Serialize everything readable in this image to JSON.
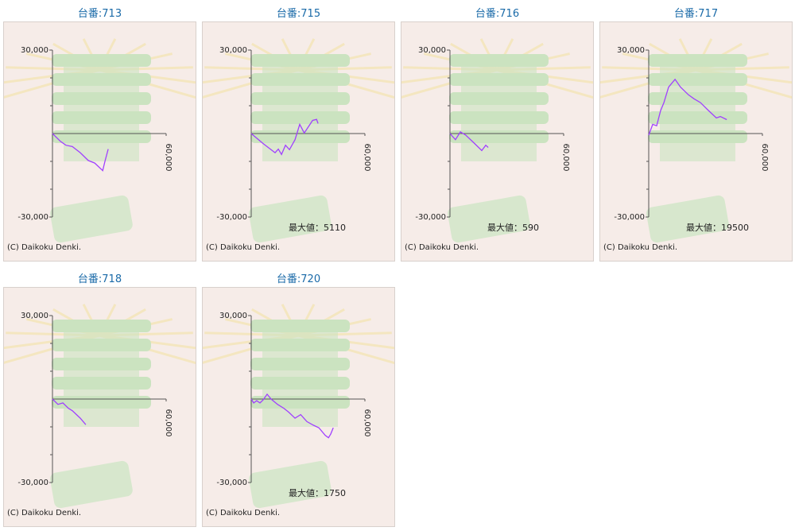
{
  "chart_data": [
    {
      "type": "line",
      "title": "台番:713",
      "copyright": "(C) Daikoku Denki.",
      "x": [
        0,
        4200,
        7100,
        10500,
        14700,
        18900,
        22300,
        26500,
        27700,
        29400
      ],
      "values": [
        0,
        -2800,
        -4200,
        -4700,
        -6900,
        -9700,
        -10600,
        -13300,
        -10000,
        -5600
      ],
      "color": "#a040ff",
      "xlim": [
        0,
        60000
      ],
      "ylim": [
        -30000,
        30000
      ],
      "xticks": [
        {
          "value": 60000,
          "label": "60,000"
        }
      ],
      "yticks": [
        {
          "value": 30000,
          "label": "30,000"
        },
        {
          "value": -30000,
          "label": "-30,000"
        }
      ],
      "minor_yticks": [
        20000,
        10000,
        -10000,
        -20000
      ]
    },
    {
      "type": "line",
      "title": "台番:715",
      "copyright": "(C) Daikoku Denki.",
      "annotation": "最大値：5110",
      "x": [
        0,
        6300,
        12600,
        14300,
        16000,
        18100,
        20200,
        23100,
        25600,
        28000,
        32400,
        34500,
        35300
      ],
      "values": [
        0,
        -3600,
        -6900,
        -5600,
        -7500,
        -4200,
        -5800,
        -2200,
        3300,
        200,
        4700,
        5100,
        3600
      ],
      "color": "#a040ff",
      "xlim": [
        0,
        60000
      ],
      "ylim": [
        -30000,
        30000
      ],
      "xticks": [
        {
          "value": 60000,
          "label": "60,000"
        }
      ],
      "yticks": [
        {
          "value": 30000,
          "label": "30,000"
        },
        {
          "value": -30000,
          "label": "-30,000"
        }
      ],
      "minor_yticks": [
        20000,
        10000,
        -10000,
        -20000
      ]
    },
    {
      "type": "line",
      "title": "台番:716",
      "copyright": "(C) Daikoku Denki.",
      "annotation": "最大値：590",
      "x": [
        0,
        2900,
        5500,
        8400,
        12600,
        16800,
        18900,
        20200
      ],
      "values": [
        0,
        -2200,
        600,
        -600,
        -3300,
        -6100,
        -4200,
        -5000
      ],
      "color": "#a040ff",
      "xlim": [
        0,
        60000
      ],
      "ylim": [
        -30000,
        30000
      ],
      "xticks": [
        {
          "value": 60000,
          "label": "60,000"
        }
      ],
      "yticks": [
        {
          "value": 30000,
          "label": "30,000"
        },
        {
          "value": -30000,
          "label": "-30,000"
        }
      ],
      "minor_yticks": [
        20000,
        10000,
        -10000,
        -20000
      ]
    },
    {
      "type": "line",
      "title": "台番:717",
      "copyright": "(C) Daikoku Denki.",
      "annotation": "最大値：19500",
      "x": [
        0,
        2100,
        4200,
        6300,
        8000,
        10500,
        13900,
        16800,
        21000,
        23900,
        27300,
        31500,
        35700,
        37800,
        41200
      ],
      "values": [
        -600,
        3300,
        2800,
        8300,
        11100,
        16700,
        19500,
        16700,
        13900,
        12500,
        11100,
        8300,
        5600,
        6100,
        5000
      ],
      "color": "#a040ff",
      "xlim": [
        0,
        60000
      ],
      "ylim": [
        -30000,
        30000
      ],
      "xticks": [
        {
          "value": 60000,
          "label": "60,000"
        }
      ],
      "yticks": [
        {
          "value": 30000,
          "label": "30,000"
        },
        {
          "value": -30000,
          "label": "-30,000"
        }
      ],
      "minor_yticks": [
        20000,
        10000,
        -10000,
        -20000
      ]
    },
    {
      "type": "line",
      "title": "台番:718",
      "copyright": "(C) Daikoku Denki.",
      "x": [
        0,
        2900,
        5500,
        8400,
        10500,
        14700,
        17600
      ],
      "values": [
        0,
        -1900,
        -1400,
        -3300,
        -4200,
        -6900,
        -9200
      ],
      "color": "#a040ff",
      "xlim": [
        0,
        60000
      ],
      "ylim": [
        -30000,
        30000
      ],
      "xticks": [
        {
          "value": 60000,
          "label": "60,000"
        }
      ],
      "yticks": [
        {
          "value": 30000,
          "label": "30,000"
        },
        {
          "value": -30000,
          "label": "-30,000"
        }
      ],
      "minor_yticks": [
        20000,
        10000,
        -10000,
        -20000
      ]
    },
    {
      "type": "line",
      "title": "台番:720",
      "copyright": "(C) Daikoku Denki.",
      "annotation": "最大値：1750",
      "x": [
        0,
        1300,
        2900,
        4600,
        6300,
        8400,
        10500,
        13900,
        17200,
        19700,
        23100,
        26100,
        29400,
        32800,
        35700,
        39100,
        40800,
        42000,
        43300
      ],
      "values": [
        0,
        -1400,
        -600,
        -1400,
        -300,
        1750,
        0,
        -1900,
        -3300,
        -4700,
        -6900,
        -5600,
        -8100,
        -9400,
        -10300,
        -13100,
        -13900,
        -12500,
        -10300
      ],
      "color": "#a040ff",
      "xlim": [
        0,
        60000
      ],
      "ylim": [
        -30000,
        30000
      ],
      "xticks": [
        {
          "value": 60000,
          "label": "60,000"
        }
      ],
      "yticks": [
        {
          "value": 30000,
          "label": "30,000"
        },
        {
          "value": -30000,
          "label": "-30,000"
        }
      ],
      "minor_yticks": [
        20000,
        10000,
        -10000,
        -20000
      ]
    }
  ]
}
